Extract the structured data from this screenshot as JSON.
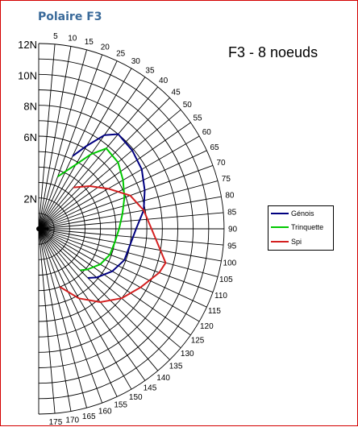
{
  "title": "Polaire F3",
  "chart_data": {
    "type": "polar-line",
    "subtitle": "F3 - 8 noeuds",
    "angles": [
      0,
      5,
      10,
      15,
      20,
      25,
      30,
      35,
      40,
      45,
      50,
      55,
      60,
      65,
      70,
      75,
      80,
      85,
      90,
      95,
      100,
      105,
      110,
      115,
      120,
      125,
      130,
      135,
      140,
      145,
      150,
      155,
      160,
      165,
      170,
      175,
      180
    ],
    "angle_labels": [
      "5",
      "10",
      "15",
      "20",
      "25",
      "30",
      "35",
      "40",
      "45",
      "50",
      "55",
      "60",
      "65",
      "70",
      "75",
      "80",
      "85",
      "90",
      "95",
      "100",
      "105",
      "110",
      "115",
      "120",
      "125",
      "130",
      "135",
      "140",
      "145",
      "150",
      "155",
      "160",
      "165",
      "170",
      "175"
    ],
    "radial_ticks": [
      2,
      4,
      6,
      8,
      10,
      12
    ],
    "radial_labels": [
      "12N",
      "10N",
      "8N",
      "6N",
      "2N"
    ],
    "rmax": 12,
    "legend_position": "right",
    "series": [
      {
        "name": "Génois",
        "color": "#000080",
        "points": [
          [
            25,
            5.2
          ],
          [
            30,
            6.2
          ],
          [
            35,
            7.4
          ],
          [
            40,
            8.0
          ],
          [
            50,
            7.9
          ],
          [
            60,
            7.7
          ],
          [
            70,
            7.3
          ],
          [
            80,
            6.9
          ],
          [
            90,
            6.3
          ],
          [
            100,
            6.0
          ],
          [
            110,
            5.9
          ],
          [
            120,
            5.5
          ],
          [
            130,
            4.9
          ],
          [
            135,
            4.5
          ]
        ]
      },
      {
        "name": "Trinquette",
        "color": "#00c800",
        "points": [
          [
            20,
            3.6
          ],
          [
            30,
            4.8
          ],
          [
            35,
            5.9
          ],
          [
            40,
            6.8
          ],
          [
            50,
            6.7
          ],
          [
            60,
            6.3
          ],
          [
            70,
            5.9
          ],
          [
            80,
            5.5
          ],
          [
            90,
            5.2
          ],
          [
            100,
            5.0
          ],
          [
            110,
            4.9
          ],
          [
            120,
            4.6
          ],
          [
            130,
            4.1
          ],
          [
            135,
            3.8
          ]
        ]
      },
      {
        "name": "Spi",
        "color": "#d42020",
        "points": [
          [
            40,
            3.5
          ],
          [
            50,
            4.3
          ],
          [
            60,
            5.2
          ],
          [
            70,
            6.3
          ],
          [
            80,
            6.9
          ],
          [
            90,
            7.3
          ],
          [
            100,
            8.0
          ],
          [
            105,
            8.5
          ],
          [
            110,
            8.3
          ],
          [
            120,
            7.6
          ],
          [
            130,
            7.0
          ],
          [
            140,
            6.2
          ],
          [
            150,
            5.2
          ],
          [
            160,
            4.0
          ]
        ]
      }
    ]
  }
}
